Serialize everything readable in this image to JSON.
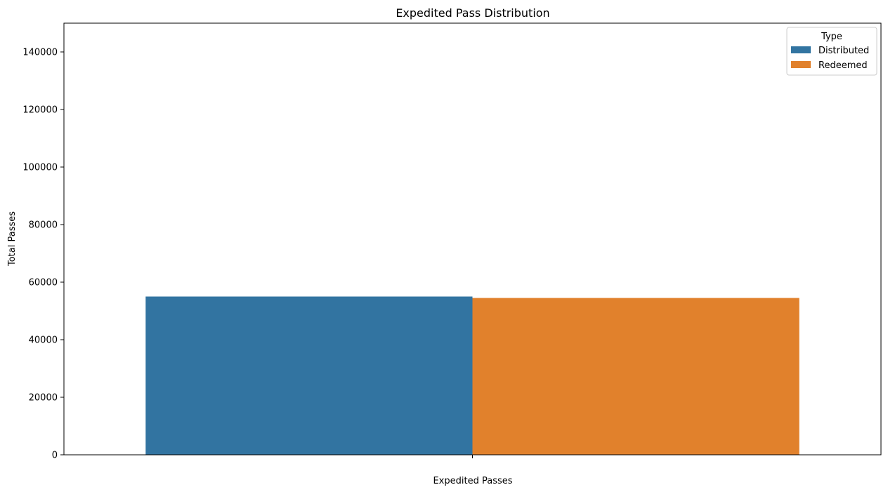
{
  "chart_data": {
    "type": "bar",
    "title": "Expedited Pass Distribution",
    "xlabel": "Expedited Passes",
    "ylabel": "Total Passes",
    "categories": [
      ""
    ],
    "series": [
      {
        "name": "Distributed",
        "values": [
          55000
        ],
        "color": "#3274a1"
      },
      {
        "name": "Redeemed",
        "values": [
          54500
        ],
        "color": "#e1812c"
      }
    ],
    "ylim": [
      0,
      150000
    ],
    "yticks": [
      0,
      20000,
      40000,
      60000,
      80000,
      100000,
      120000,
      140000
    ],
    "legend": {
      "title": "Type",
      "position": "top-right"
    },
    "grid": false
  }
}
